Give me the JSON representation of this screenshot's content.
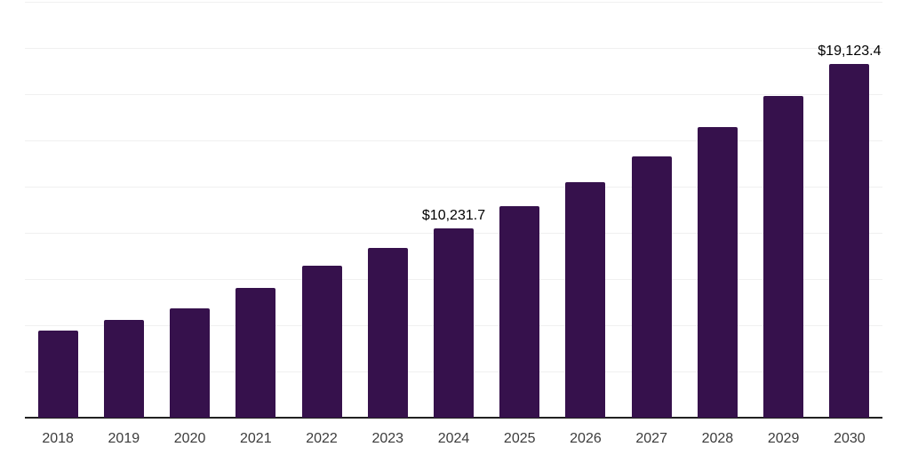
{
  "chart_data": {
    "type": "bar",
    "title": "",
    "xlabel": "",
    "ylabel": "",
    "categories": [
      "2018",
      "2019",
      "2020",
      "2021",
      "2022",
      "2023",
      "2024",
      "2025",
      "2026",
      "2027",
      "2028",
      "2029",
      "2030"
    ],
    "values": [
      4700,
      5300,
      5930,
      7000,
      8230,
      9190,
      10231.7,
      11450,
      12740,
      14140,
      15720,
      17400,
      19123.4
    ],
    "data_labels": [
      {
        "category": "2024",
        "text": "$10,231.7"
      },
      {
        "category": "2030",
        "text": "$19,123.4"
      }
    ],
    "ylim": [
      0,
      22500
    ],
    "gridline_step": 2500,
    "grid": "horizontal-only",
    "y_axis_tick_labels": "none",
    "legend_position": "none",
    "colors": {
      "bar": "#36114C",
      "gridline": "#f0f0f0",
      "axis_line": "#212121",
      "tick_label": "#3c3c3c",
      "data_label": "#000000",
      "background": "#ffffff"
    }
  }
}
